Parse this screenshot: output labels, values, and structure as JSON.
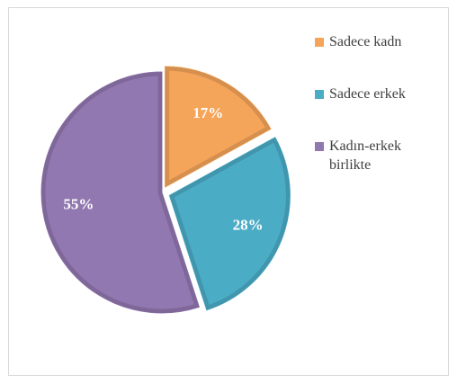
{
  "chart_data": {
    "type": "pie",
    "categories": [
      "Sadece kadn",
      "Sadece erkek",
      "Kadın-erkek birlikte"
    ],
    "values": [
      17,
      28,
      55
    ],
    "value_labels": [
      "17%",
      "28%",
      "55%"
    ],
    "colors": [
      "#f5a55a",
      "#4bacc6",
      "#9278b0"
    ],
    "legend": "right"
  }
}
